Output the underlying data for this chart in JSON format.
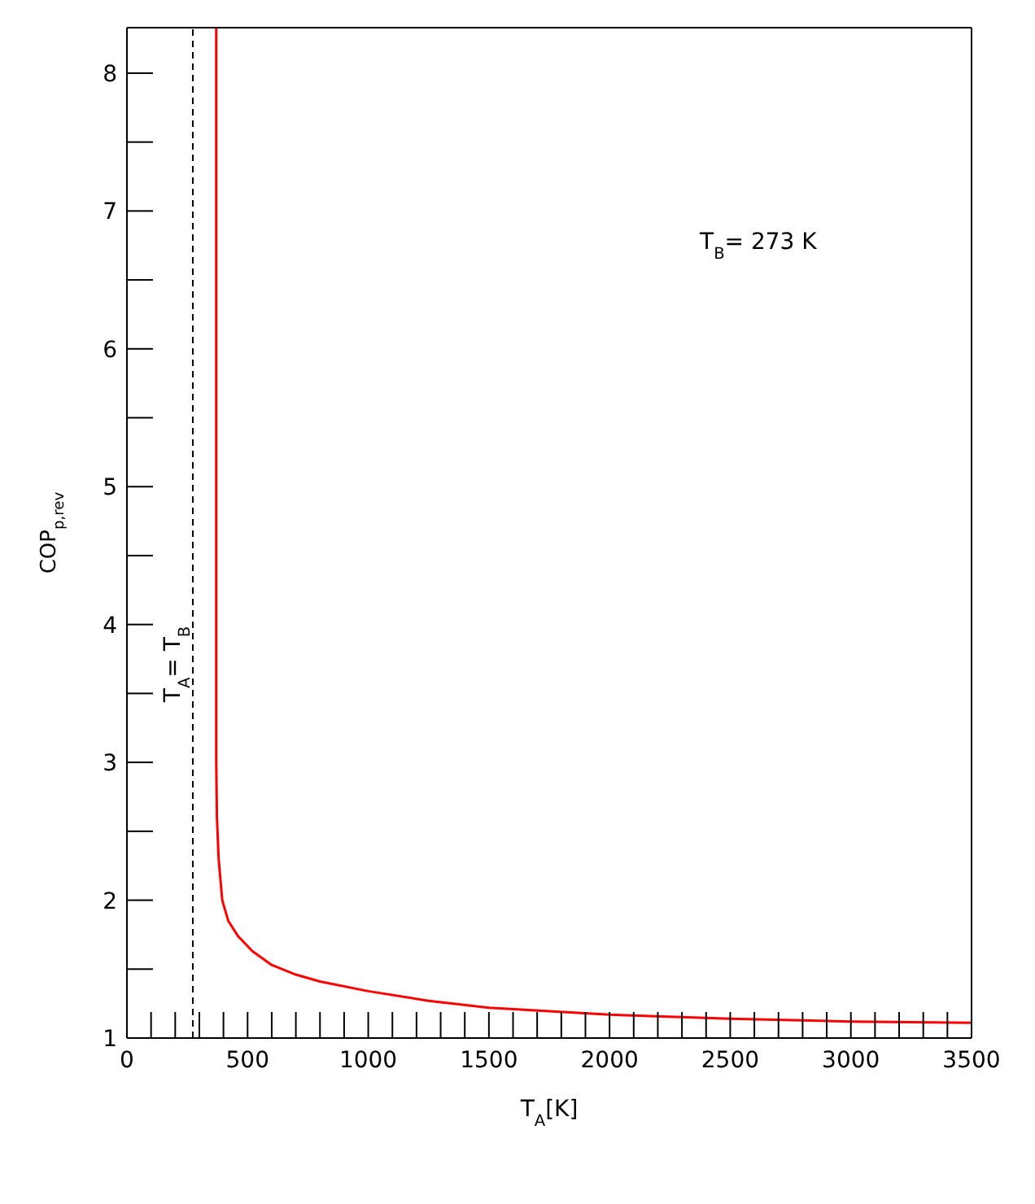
{
  "chart_data": {
    "type": "line",
    "xlabel": "T$_{A}$[K]",
    "ylabel": "COP$_{p,rev}$",
    "annotations": [
      "T$_{B}$= 273 K"
    ],
    "xlim": [
      0,
      3500
    ],
    "ylim": [
      1,
      8.33
    ],
    "xticks": [
      0,
      {
        "value": 100,
        "label": null
      },
      {
        "value": 200,
        "label": null
      },
      {
        "value": 300,
        "label": null
      },
      {
        "value": 400,
        "label": null
      },
      500,
      {
        "value": 600,
        "label": null
      },
      {
        "value": 700,
        "label": null
      },
      {
        "value": 800,
        "label": null
      },
      {
        "value": 900,
        "label": null
      },
      1000,
      {
        "value": 1100,
        "label": null
      },
      {
        "value": 1200,
        "label": null
      },
      {
        "value": 1300,
        "label": null
      },
      {
        "value": 1400,
        "label": null
      },
      1500,
      {
        "value": 1600,
        "label": null
      },
      {
        "value": 1700,
        "label": null
      },
      {
        "value": 1800,
        "label": null
      },
      {
        "value": 1900,
        "label": null
      },
      2000,
      {
        "value": 2100,
        "label": null
      },
      {
        "value": 2200,
        "label": null
      },
      {
        "value": 2300,
        "label": null
      },
      {
        "value": 2400,
        "label": null
      },
      2500,
      {
        "value": 2600,
        "label": null
      },
      {
        "value": 2700,
        "label": null
      },
      {
        "value": 2800,
        "label": null
      },
      {
        "value": 2900,
        "label": null
      },
      3000,
      {
        "value": 3100,
        "label": null
      },
      {
        "value": 3200,
        "label": null
      },
      {
        "value": 3300,
        "label": null
      },
      {
        "value": 3400,
        "label": null
      },
      3500
    ],
    "yticks": [
      1,
      {
        "value": 1.5,
        "label": null
      },
      2,
      {
        "value": 2.5,
        "label": null
      },
      3,
      {
        "value": 3.5,
        "label": null
      },
      4,
      {
        "value": 4.5,
        "label": null
      },
      5,
      {
        "value": 5.5,
        "label": null
      },
      6,
      {
        "value": 6.5,
        "label": null
      },
      7,
      {
        "value": 7.5,
        "label": null
      },
      8
    ],
    "ref_lines": [
      {
        "axis": "x",
        "value": 273,
        "label": "T$_{A}$= T$_{B}$",
        "color": "#000000",
        "line_style": "dashed"
      }
    ],
    "marker": "none",
    "line_style": "solid",
    "legend": false,
    "series": [
      {
        "color": "#ff0000",
        "x": [
          370,
          370,
          373,
          380,
          395,
          420,
          460,
          520,
          600,
          700,
          800,
          1000,
          1250,
          1500,
          2000,
          2500,
          3000,
          3500
        ],
        "values": [
          8.33,
          3.0,
          2.6,
          2.3,
          2.0,
          1.85,
          1.74,
          1.63,
          1.53,
          1.46,
          1.41,
          1.34,
          1.27,
          1.22,
          1.17,
          1.14,
          1.12,
          1.11
        ]
      }
    ]
  }
}
